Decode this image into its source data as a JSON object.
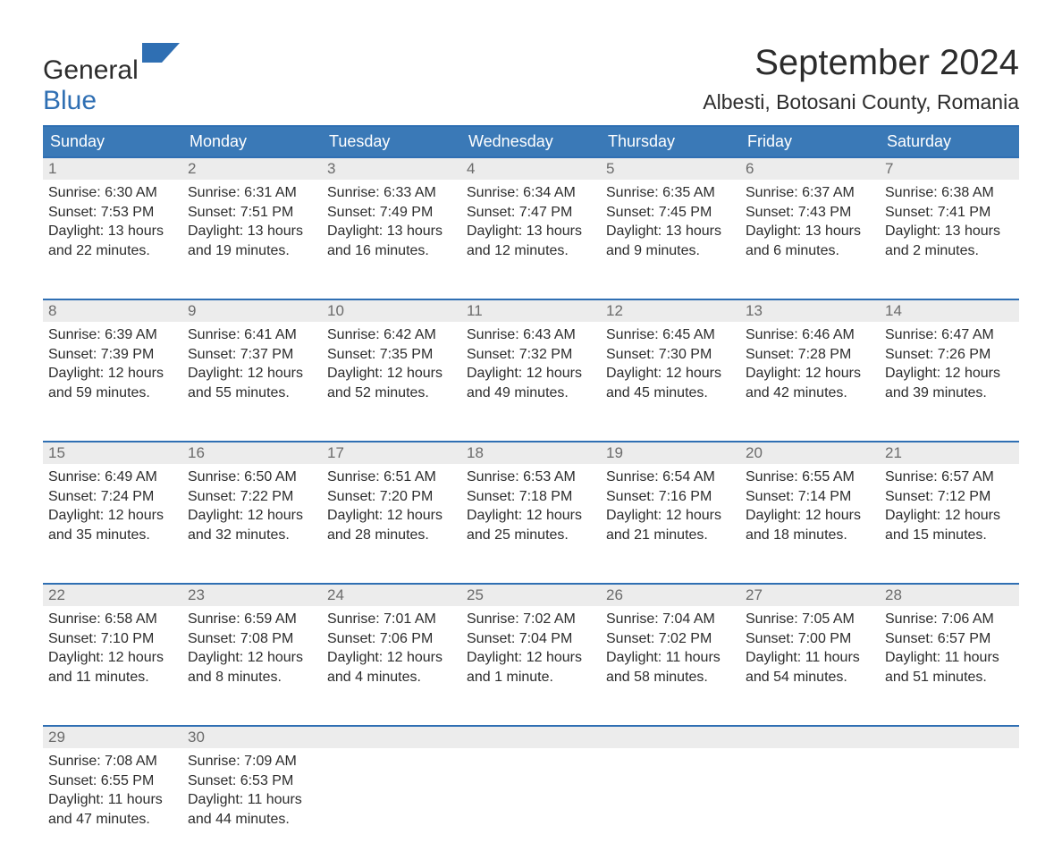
{
  "brand": {
    "part1": "General",
    "part2": "Blue",
    "text_color": "#2c2c2c",
    "accent_color": "#2f6fb3"
  },
  "title": "September 2024",
  "location": "Albesti, Botosani County, Romania",
  "colors": {
    "header_bg": "#3a79b7",
    "header_text": "#ffffff",
    "row_divider": "#2f6fb3",
    "daynum_bg": "#ececec",
    "daynum_color": "#6b6b6b",
    "body_text": "#2c2c2c",
    "page_bg": "#ffffff"
  },
  "typography": {
    "title_fontsize": 40,
    "location_fontsize": 23,
    "header_fontsize": 18,
    "daynum_fontsize": 17,
    "body_fontsize": 16
  },
  "weekdays": [
    "Sunday",
    "Monday",
    "Tuesday",
    "Wednesday",
    "Thursday",
    "Friday",
    "Saturday"
  ],
  "weeks": [
    [
      {
        "n": "1",
        "sunrise": "6:30 AM",
        "sunset": "7:53 PM",
        "daylight": "13 hours and 22 minutes."
      },
      {
        "n": "2",
        "sunrise": "6:31 AM",
        "sunset": "7:51 PM",
        "daylight": "13 hours and 19 minutes."
      },
      {
        "n": "3",
        "sunrise": "6:33 AM",
        "sunset": "7:49 PM",
        "daylight": "13 hours and 16 minutes."
      },
      {
        "n": "4",
        "sunrise": "6:34 AM",
        "sunset": "7:47 PM",
        "daylight": "13 hours and 12 minutes."
      },
      {
        "n": "5",
        "sunrise": "6:35 AM",
        "sunset": "7:45 PM",
        "daylight": "13 hours and 9 minutes."
      },
      {
        "n": "6",
        "sunrise": "6:37 AM",
        "sunset": "7:43 PM",
        "daylight": "13 hours and 6 minutes."
      },
      {
        "n": "7",
        "sunrise": "6:38 AM",
        "sunset": "7:41 PM",
        "daylight": "13 hours and 2 minutes."
      }
    ],
    [
      {
        "n": "8",
        "sunrise": "6:39 AM",
        "sunset": "7:39 PM",
        "daylight": "12 hours and 59 minutes."
      },
      {
        "n": "9",
        "sunrise": "6:41 AM",
        "sunset": "7:37 PM",
        "daylight": "12 hours and 55 minutes."
      },
      {
        "n": "10",
        "sunrise": "6:42 AM",
        "sunset": "7:35 PM",
        "daylight": "12 hours and 52 minutes."
      },
      {
        "n": "11",
        "sunrise": "6:43 AM",
        "sunset": "7:32 PM",
        "daylight": "12 hours and 49 minutes."
      },
      {
        "n": "12",
        "sunrise": "6:45 AM",
        "sunset": "7:30 PM",
        "daylight": "12 hours and 45 minutes."
      },
      {
        "n": "13",
        "sunrise": "6:46 AM",
        "sunset": "7:28 PM",
        "daylight": "12 hours and 42 minutes."
      },
      {
        "n": "14",
        "sunrise": "6:47 AM",
        "sunset": "7:26 PM",
        "daylight": "12 hours and 39 minutes."
      }
    ],
    [
      {
        "n": "15",
        "sunrise": "6:49 AM",
        "sunset": "7:24 PM",
        "daylight": "12 hours and 35 minutes."
      },
      {
        "n": "16",
        "sunrise": "6:50 AM",
        "sunset": "7:22 PM",
        "daylight": "12 hours and 32 minutes."
      },
      {
        "n": "17",
        "sunrise": "6:51 AM",
        "sunset": "7:20 PM",
        "daylight": "12 hours and 28 minutes."
      },
      {
        "n": "18",
        "sunrise": "6:53 AM",
        "sunset": "7:18 PM",
        "daylight": "12 hours and 25 minutes."
      },
      {
        "n": "19",
        "sunrise": "6:54 AM",
        "sunset": "7:16 PM",
        "daylight": "12 hours and 21 minutes."
      },
      {
        "n": "20",
        "sunrise": "6:55 AM",
        "sunset": "7:14 PM",
        "daylight": "12 hours and 18 minutes."
      },
      {
        "n": "21",
        "sunrise": "6:57 AM",
        "sunset": "7:12 PM",
        "daylight": "12 hours and 15 minutes."
      }
    ],
    [
      {
        "n": "22",
        "sunrise": "6:58 AM",
        "sunset": "7:10 PM",
        "daylight": "12 hours and 11 minutes."
      },
      {
        "n": "23",
        "sunrise": "6:59 AM",
        "sunset": "7:08 PM",
        "daylight": "12 hours and 8 minutes."
      },
      {
        "n": "24",
        "sunrise": "7:01 AM",
        "sunset": "7:06 PM",
        "daylight": "12 hours and 4 minutes."
      },
      {
        "n": "25",
        "sunrise": "7:02 AM",
        "sunset": "7:04 PM",
        "daylight": "12 hours and 1 minute."
      },
      {
        "n": "26",
        "sunrise": "7:04 AM",
        "sunset": "7:02 PM",
        "daylight": "11 hours and 58 minutes."
      },
      {
        "n": "27",
        "sunrise": "7:05 AM",
        "sunset": "7:00 PM",
        "daylight": "11 hours and 54 minutes."
      },
      {
        "n": "28",
        "sunrise": "7:06 AM",
        "sunset": "6:57 PM",
        "daylight": "11 hours and 51 minutes."
      }
    ],
    [
      {
        "n": "29",
        "sunrise": "7:08 AM",
        "sunset": "6:55 PM",
        "daylight": "11 hours and 47 minutes."
      },
      {
        "n": "30",
        "sunrise": "7:09 AM",
        "sunset": "6:53 PM",
        "daylight": "11 hours and 44 minutes."
      },
      null,
      null,
      null,
      null,
      null
    ]
  ],
  "labels": {
    "sunrise": "Sunrise:",
    "sunset": "Sunset:",
    "daylight": "Daylight:"
  }
}
